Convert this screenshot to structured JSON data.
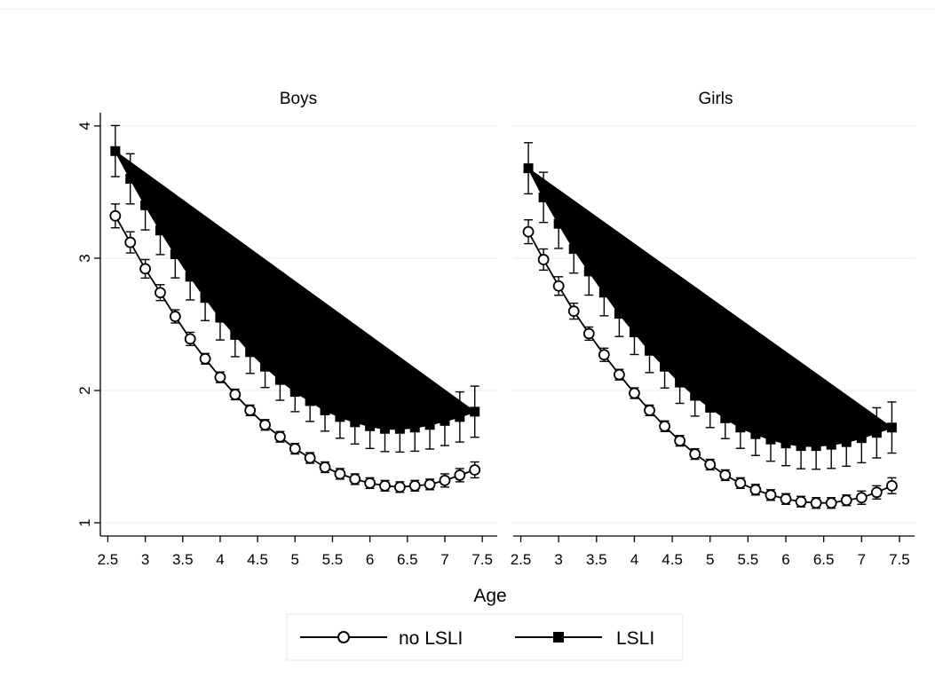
{
  "chart_data": {
    "type": "line",
    "xlabel": "Age",
    "ylabel": "",
    "xlim": [
      2.4,
      7.7
    ],
    "ylim": [
      0.9,
      4.1
    ],
    "x_ticks": [
      2.5,
      3,
      3.5,
      4,
      4.5,
      5,
      5.5,
      6,
      6.5,
      7,
      7.5
    ],
    "y_ticks": [
      1,
      2,
      3,
      4
    ],
    "grid": true,
    "legend_position": "bottom",
    "legend": [
      {
        "series": "no LSLI",
        "label": "no LSLI",
        "marker": "hollow-circle"
      },
      {
        "series": "LSLI",
        "label": "LSLI",
        "marker": "filled-square"
      }
    ],
    "x": [
      2.6,
      2.8,
      3.0,
      3.2,
      3.4,
      3.6,
      3.8,
      4.0,
      4.2,
      4.4,
      4.6,
      4.8,
      5.0,
      5.2,
      5.4,
      5.6,
      5.8,
      6.0,
      6.2,
      6.4,
      6.6,
      6.8,
      7.0,
      7.2,
      7.4
    ],
    "panels": [
      {
        "title": "Boys",
        "series": [
          {
            "name": "no LSLI",
            "values": [
              3.32,
              3.12,
              2.92,
              2.74,
              2.56,
              2.39,
              2.24,
              2.1,
              1.97,
              1.85,
              1.74,
              1.65,
              1.56,
              1.49,
              1.42,
              1.37,
              1.33,
              1.3,
              1.28,
              1.27,
              1.28,
              1.29,
              1.32,
              1.36,
              1.4
            ],
            "ci_half": [
              0.09,
              0.08,
              0.07,
              0.06,
              0.05,
              0.05,
              0.04,
              0.04,
              0.04,
              0.04,
              0.04,
              0.04,
              0.04,
              0.04,
              0.04,
              0.04,
              0.04,
              0.04,
              0.04,
              0.04,
              0.04,
              0.04,
              0.05,
              0.05,
              0.06
            ]
          },
          {
            "name": "LSLI",
            "values": [
              3.81,
              3.6,
              3.4,
              3.21,
              3.03,
              2.86,
              2.7,
              2.55,
              2.42,
              2.29,
              2.18,
              2.08,
              1.99,
              1.92,
              1.85,
              1.8,
              1.76,
              1.73,
              1.71,
              1.71,
              1.72,
              1.74,
              1.77,
              1.8,
              1.84
            ]
          }
        ]
      },
      {
        "title": "Girls",
        "series": [
          {
            "name": "no LSLI",
            "values": [
              3.2,
              2.99,
              2.79,
              2.6,
              2.43,
              2.27,
              2.12,
              1.98,
              1.85,
              1.73,
              1.62,
              1.52,
              1.44,
              1.36,
              1.3,
              1.25,
              1.21,
              1.18,
              1.16,
              1.15,
              1.15,
              1.17,
              1.19,
              1.23,
              1.28
            ]
          },
          {
            "name": "LSLI",
            "values": [
              3.68,
              3.46,
              3.26,
              3.07,
              2.9,
              2.74,
              2.58,
              2.44,
              2.3,
              2.18,
              2.06,
              1.96,
              1.87,
              1.79,
              1.72,
              1.67,
              1.63,
              1.6,
              1.58,
              1.58,
              1.59,
              1.61,
              1.64,
              1.68,
              1.72
            ]
          }
        ]
      }
    ]
  }
}
